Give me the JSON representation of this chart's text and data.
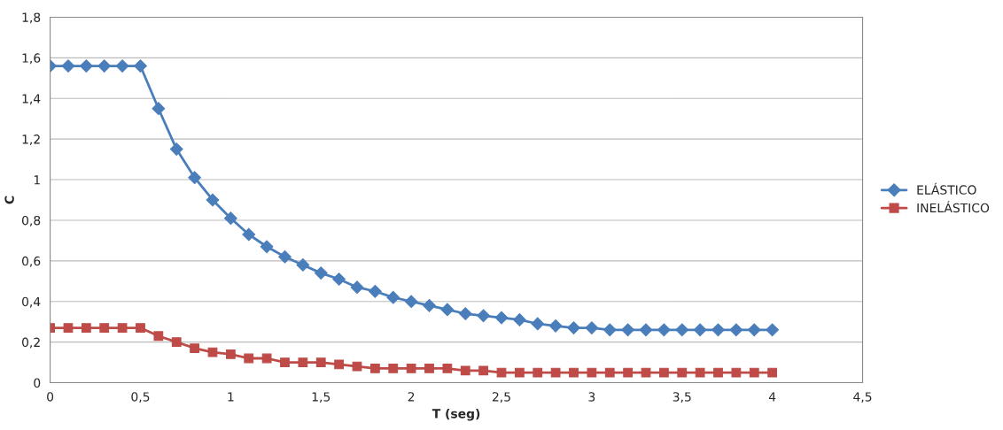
{
  "chart_data": {
    "type": "line",
    "xlabel": "T (seg)",
    "ylabel": "C",
    "x": [
      0,
      0.1,
      0.2,
      0.3,
      0.4,
      0.5,
      0.6,
      0.7,
      0.8,
      0.9,
      1,
      1.1,
      1.2,
      1.3,
      1.4,
      1.5,
      1.6,
      1.7,
      1.8,
      1.9,
      2,
      2.1,
      2.2,
      2.3,
      2.4,
      2.5,
      2.6,
      2.7,
      2.8,
      2.9,
      3,
      3.1,
      3.2,
      3.3,
      3.4,
      3.5,
      3.6,
      3.7,
      3.8,
      3.9,
      4
    ],
    "series": [
      {
        "name": "ELÁSTICO",
        "color": "#4a7ebb",
        "marker": "diamond",
        "values": [
          1.56,
          1.56,
          1.56,
          1.56,
          1.56,
          1.56,
          1.35,
          1.15,
          1.01,
          0.9,
          0.81,
          0.73,
          0.67,
          0.62,
          0.58,
          0.54,
          0.51,
          0.47,
          0.45,
          0.42,
          0.4,
          0.38,
          0.36,
          0.34,
          0.33,
          0.32,
          0.31,
          0.29,
          0.28,
          0.27,
          0.27,
          0.26,
          0.26,
          0.26,
          0.26,
          0.26,
          0.26,
          0.26,
          0.26,
          0.26,
          0.26
        ]
      },
      {
        "name": "INELÁSTICO",
        "color": "#be4b48",
        "marker": "square",
        "values": [
          0.27,
          0.27,
          0.27,
          0.27,
          0.27,
          0.27,
          0.23,
          0.2,
          0.17,
          0.15,
          0.14,
          0.12,
          0.12,
          0.1,
          0.1,
          0.1,
          0.09,
          0.08,
          0.07,
          0.07,
          0.07,
          0.07,
          0.07,
          0.06,
          0.06,
          0.05,
          0.05,
          0.05,
          0.05,
          0.05,
          0.05,
          0.05,
          0.05,
          0.05,
          0.05,
          0.05,
          0.05,
          0.05,
          0.05,
          0.05,
          0.05
        ]
      }
    ],
    "xlim": [
      0,
      4.5
    ],
    "xticks": [
      0,
      {
        "value": 0.5,
        "label": "0,5"
      },
      1,
      {
        "value": 1.5,
        "label": "1,5"
      },
      2,
      {
        "value": 2.5,
        "label": "2,5"
      },
      3,
      {
        "value": 3.5,
        "label": "3,5"
      },
      4,
      {
        "value": 4.5,
        "label": "4,5"
      }
    ],
    "ylim": [
      0,
      1.8
    ],
    "yticks": [
      0,
      {
        "value": 0.2,
        "label": "0,2"
      },
      {
        "value": 0.4,
        "label": "0,4"
      },
      {
        "value": 0.6,
        "label": "0,6"
      },
      {
        "value": 0.8,
        "label": "0,8"
      },
      1,
      {
        "value": 1.2,
        "label": "1,2"
      },
      {
        "value": 1.4,
        "label": "1,4"
      },
      {
        "value": 1.6,
        "label": "1,6"
      },
      {
        "value": 1.8,
        "label": "1,8"
      }
    ],
    "grid": "y",
    "legend": "right",
    "line_style": "solid"
  }
}
